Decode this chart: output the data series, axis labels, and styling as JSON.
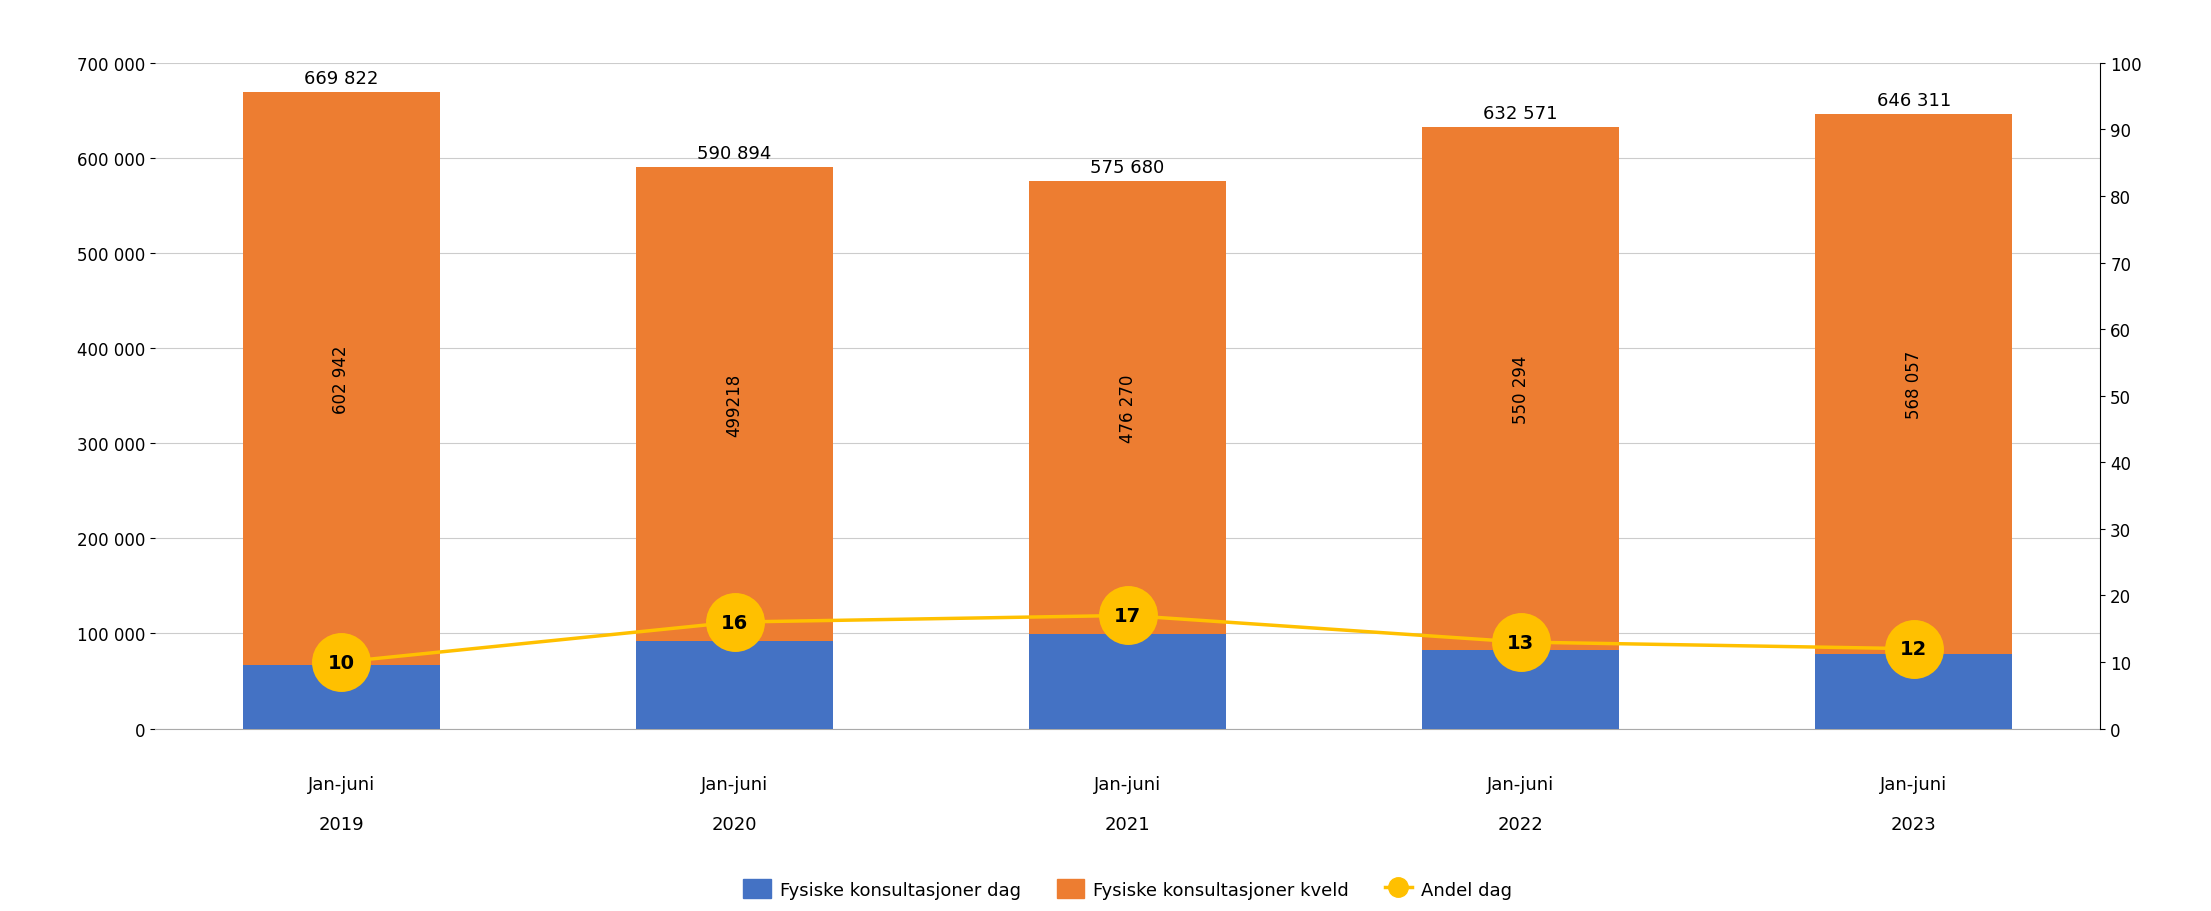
{
  "years_line1": [
    "Jan-juni",
    "Jan-juni",
    "Jan-juni",
    "Jan-juni",
    "Jan-juni"
  ],
  "years_line2": [
    "2019",
    "2020",
    "2021",
    "2022",
    "2023"
  ],
  "dag_values": [
    66880,
    91676,
    99410,
    82277,
    78254
  ],
  "kveld_values": [
    602942,
    499218,
    476270,
    550294,
    568057
  ],
  "totals": [
    669822,
    590894,
    575680,
    632571,
    646311
  ],
  "total_labels": [
    "669 822",
    "590 894",
    "575 680",
    "632 571",
    "646 311"
  ],
  "kveld_labels": [
    "602 942",
    "499218",
    "476 270",
    "550 294",
    "568 057"
  ],
  "andel_dag": [
    10,
    16,
    17,
    13,
    12
  ],
  "dag_color": "#4472C4",
  "kveld_color": "#ED7D31",
  "andel_color": "#FFC000",
  "andel_line_color": "#FFC000",
  "background_color": "#FFFFFF",
  "ylim_left": [
    0,
    700000
  ],
  "ylim_right": [
    0,
    100
  ],
  "yticks_left": [
    0,
    100000,
    200000,
    300000,
    400000,
    500000,
    600000,
    700000
  ],
  "yticks_right": [
    0,
    10,
    20,
    30,
    40,
    50,
    60,
    70,
    80,
    90,
    100
  ],
  "legend_dag": "Fysiske konsultasjoner dag",
  "legend_kveld": "Fysiske konsultasjoner kveld",
  "legend_andel": "Andel dag",
  "figsize": [
    22.11,
    9.12
  ],
  "dpi": 100
}
